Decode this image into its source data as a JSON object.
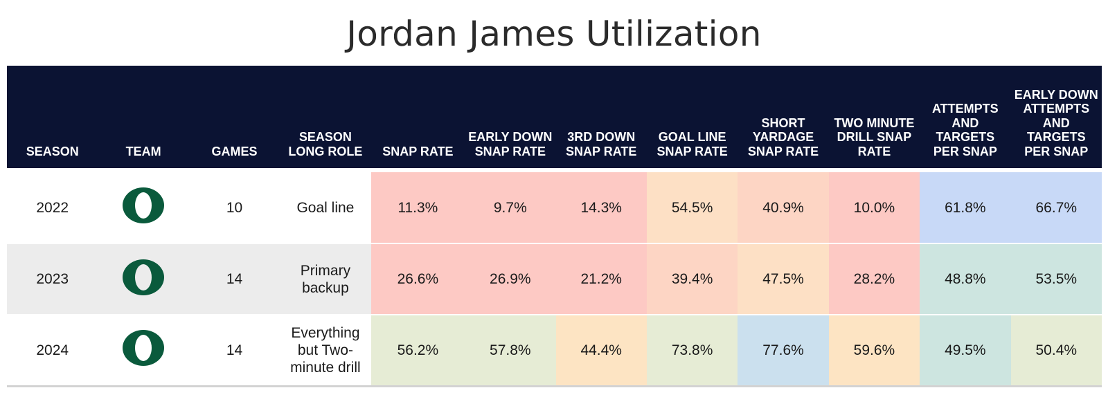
{
  "title": "Jordan James Utilization",
  "columns": [
    "SEASON",
    "TEAM",
    "GAMES",
    "SEASON LONG ROLE",
    "SNAP RATE",
    "EARLY DOWN SNAP RATE",
    "3RD DOWN SNAP RATE",
    "GOAL LINE SNAP RATE",
    "SHORT YARDAGE SNAP RATE",
    "TWO MINUTE DRILL SNAP RATE",
    "ATTEMPTS AND TARGETS PER SNAP",
    "EARLY DOWN ATTEMPTS AND TARGETS PER SNAP"
  ],
  "team_logo": {
    "icon": "oregon-o-logo-icon",
    "color": "#0a5a3c"
  },
  "rows": [
    {
      "season": "2022",
      "games": "10",
      "role": "Goal line",
      "row_bg": "#ffffff",
      "metrics": [
        {
          "value": "11.3%",
          "color": "#fdc9c4"
        },
        {
          "value": "9.7%",
          "color": "#fdc9c4"
        },
        {
          "value": "14.3%",
          "color": "#fdc9c4"
        },
        {
          "value": "54.5%",
          "color": "#fde0c5"
        },
        {
          "value": "40.9%",
          "color": "#fdd5c4"
        },
        {
          "value": "10.0%",
          "color": "#fdc9c4"
        },
        {
          "value": "61.8%",
          "color": "#c8d9f7"
        },
        {
          "value": "66.7%",
          "color": "#c8d9f7"
        }
      ]
    },
    {
      "season": "2023",
      "games": "14",
      "role": "Primary backup",
      "row_bg": "#ececec",
      "metrics": [
        {
          "value": "26.6%",
          "color": "#fdc9c4"
        },
        {
          "value": "26.9%",
          "color": "#fdc9c4"
        },
        {
          "value": "21.2%",
          "color": "#fdc9c4"
        },
        {
          "value": "39.4%",
          "color": "#fdd5c4"
        },
        {
          "value": "47.5%",
          "color": "#fde0c5"
        },
        {
          "value": "28.2%",
          "color": "#fdc9c4"
        },
        {
          "value": "48.8%",
          "color": "#cde5e0"
        },
        {
          "value": "53.5%",
          "color": "#cde5e0"
        }
      ]
    },
    {
      "season": "2024",
      "games": "14",
      "role": "Everything but Two-minute drill",
      "row_bg": "#ffffff",
      "metrics": [
        {
          "value": "56.2%",
          "color": "#e6ecd5"
        },
        {
          "value": "57.8%",
          "color": "#e6ecd5"
        },
        {
          "value": "44.4%",
          "color": "#fde4c3"
        },
        {
          "value": "73.8%",
          "color": "#e6ecd5"
        },
        {
          "value": "77.6%",
          "color": "#cbe0ee"
        },
        {
          "value": "59.6%",
          "color": "#fde4c3"
        },
        {
          "value": "49.5%",
          "color": "#cde5e0"
        },
        {
          "value": "50.4%",
          "color": "#e6ecd5"
        }
      ]
    }
  ]
}
